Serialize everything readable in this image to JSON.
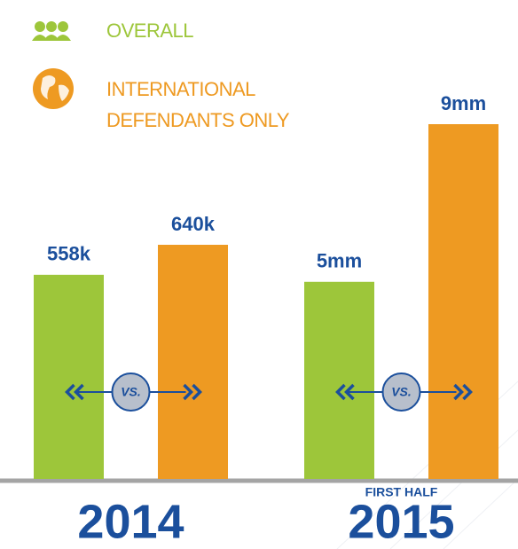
{
  "chart_data": {
    "type": "bar",
    "categories": [
      "2014",
      "2015"
    ],
    "category_notes": [
      null,
      "FIRST HALF"
    ],
    "comparison_label": "VS.",
    "series": [
      {
        "name": "OVERALL",
        "color": "#9dc63a",
        "values": [
          558000,
          5000000
        ],
        "value_labels": [
          "558k",
          "5mm"
        ]
      },
      {
        "name": "INTERNATIONAL DEFENDANTS ONLY",
        "color": "#ee9a22",
        "values": [
          640000,
          9000000
        ],
        "value_labels": [
          "640k",
          "9mm"
        ]
      }
    ]
  }
}
